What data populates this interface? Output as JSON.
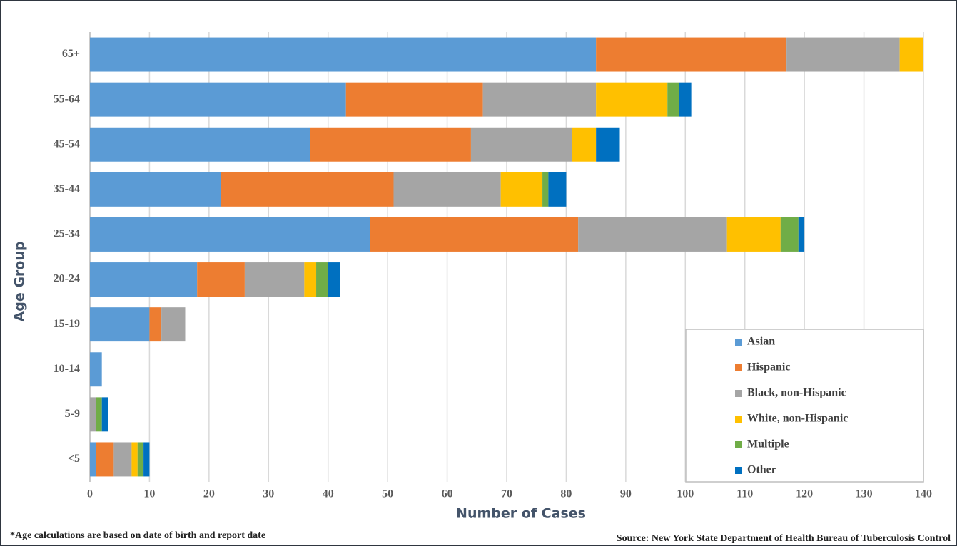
{
  "chart_data": {
    "type": "stacked-barh",
    "x_label": "Number of Cases",
    "y_label": "Age Group",
    "categories": [
      "<5",
      "5-9",
      "10-14",
      "15-19",
      "20-24",
      "25-34",
      "35-44",
      "45-54",
      "55-64",
      "65+"
    ],
    "series": [
      {
        "name": "Asian",
        "color": "#5b9bd5",
        "values": [
          1,
          0,
          2,
          10,
          18,
          47,
          22,
          37,
          43,
          85
        ]
      },
      {
        "name": "Hispanic",
        "color": "#ed7d31",
        "values": [
          3,
          0,
          0,
          2,
          8,
          35,
          29,
          27,
          23,
          32
        ]
      },
      {
        "name": "Black, non-Hispanic",
        "color": "#a5a5a5",
        "values": [
          3,
          1,
          0,
          4,
          10,
          25,
          18,
          17,
          19,
          19
        ]
      },
      {
        "name": "White, non-Hispanic",
        "color": "#ffc000",
        "values": [
          1,
          0,
          0,
          0,
          2,
          9,
          7,
          4,
          12,
          4
        ]
      },
      {
        "name": "Multiple",
        "color": "#70ad47",
        "values": [
          1,
          1,
          0,
          0,
          2,
          3,
          1,
          0,
          2,
          0
        ]
      },
      {
        "name": "Other",
        "color": "#0070c0",
        "values": [
          1,
          1,
          0,
          0,
          2,
          1,
          3,
          4,
          2,
          0
        ]
      }
    ],
    "xlim": [
      0,
      140
    ],
    "xticks": [
      0,
      10,
      20,
      30,
      40,
      50,
      60,
      70,
      80,
      90,
      100,
      110,
      120,
      130,
      140
    ],
    "grid": true,
    "legend": "lower right",
    "footnote": "*Age calculations are based on date of birth and report date",
    "source": "Source: New York State Department of Health Bureau of Tuberculosis Control"
  }
}
